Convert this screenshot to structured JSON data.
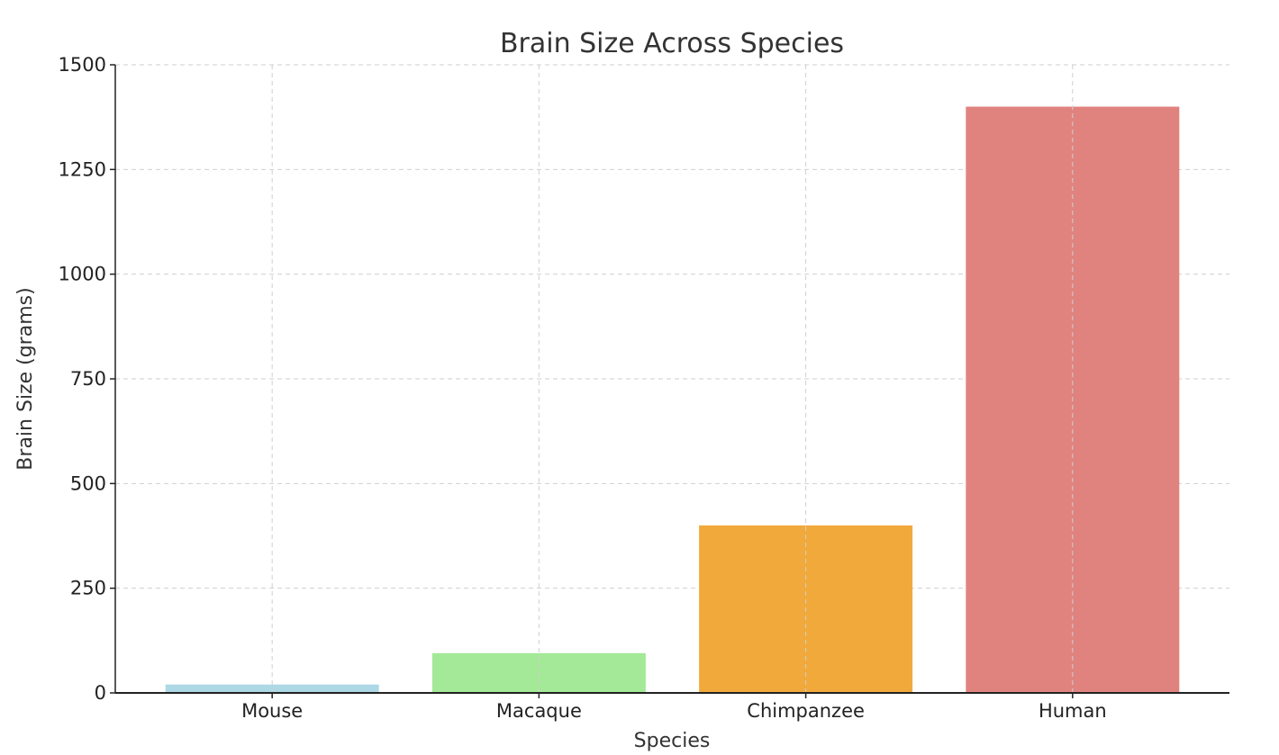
{
  "chart_data": {
    "type": "bar",
    "title": "Brain Size Across Species",
    "xlabel": "Species",
    "ylabel": "Brain Size (grams)",
    "categories": [
      "Mouse",
      "Macaque",
      "Chimpanzee",
      "Human"
    ],
    "values": [
      20,
      95,
      400,
      1400
    ],
    "colors": [
      "#add8e6",
      "#a3e997",
      "#f2a93b",
      "#e0837f"
    ],
    "ylim": [
      0,
      1500
    ],
    "yticks": [
      0,
      250,
      500,
      750,
      1000,
      1250,
      1500
    ],
    "ytick_labels": [
      "0",
      "250",
      "500",
      "750",
      "1000",
      "1250",
      "1500"
    ],
    "grid": true
  }
}
